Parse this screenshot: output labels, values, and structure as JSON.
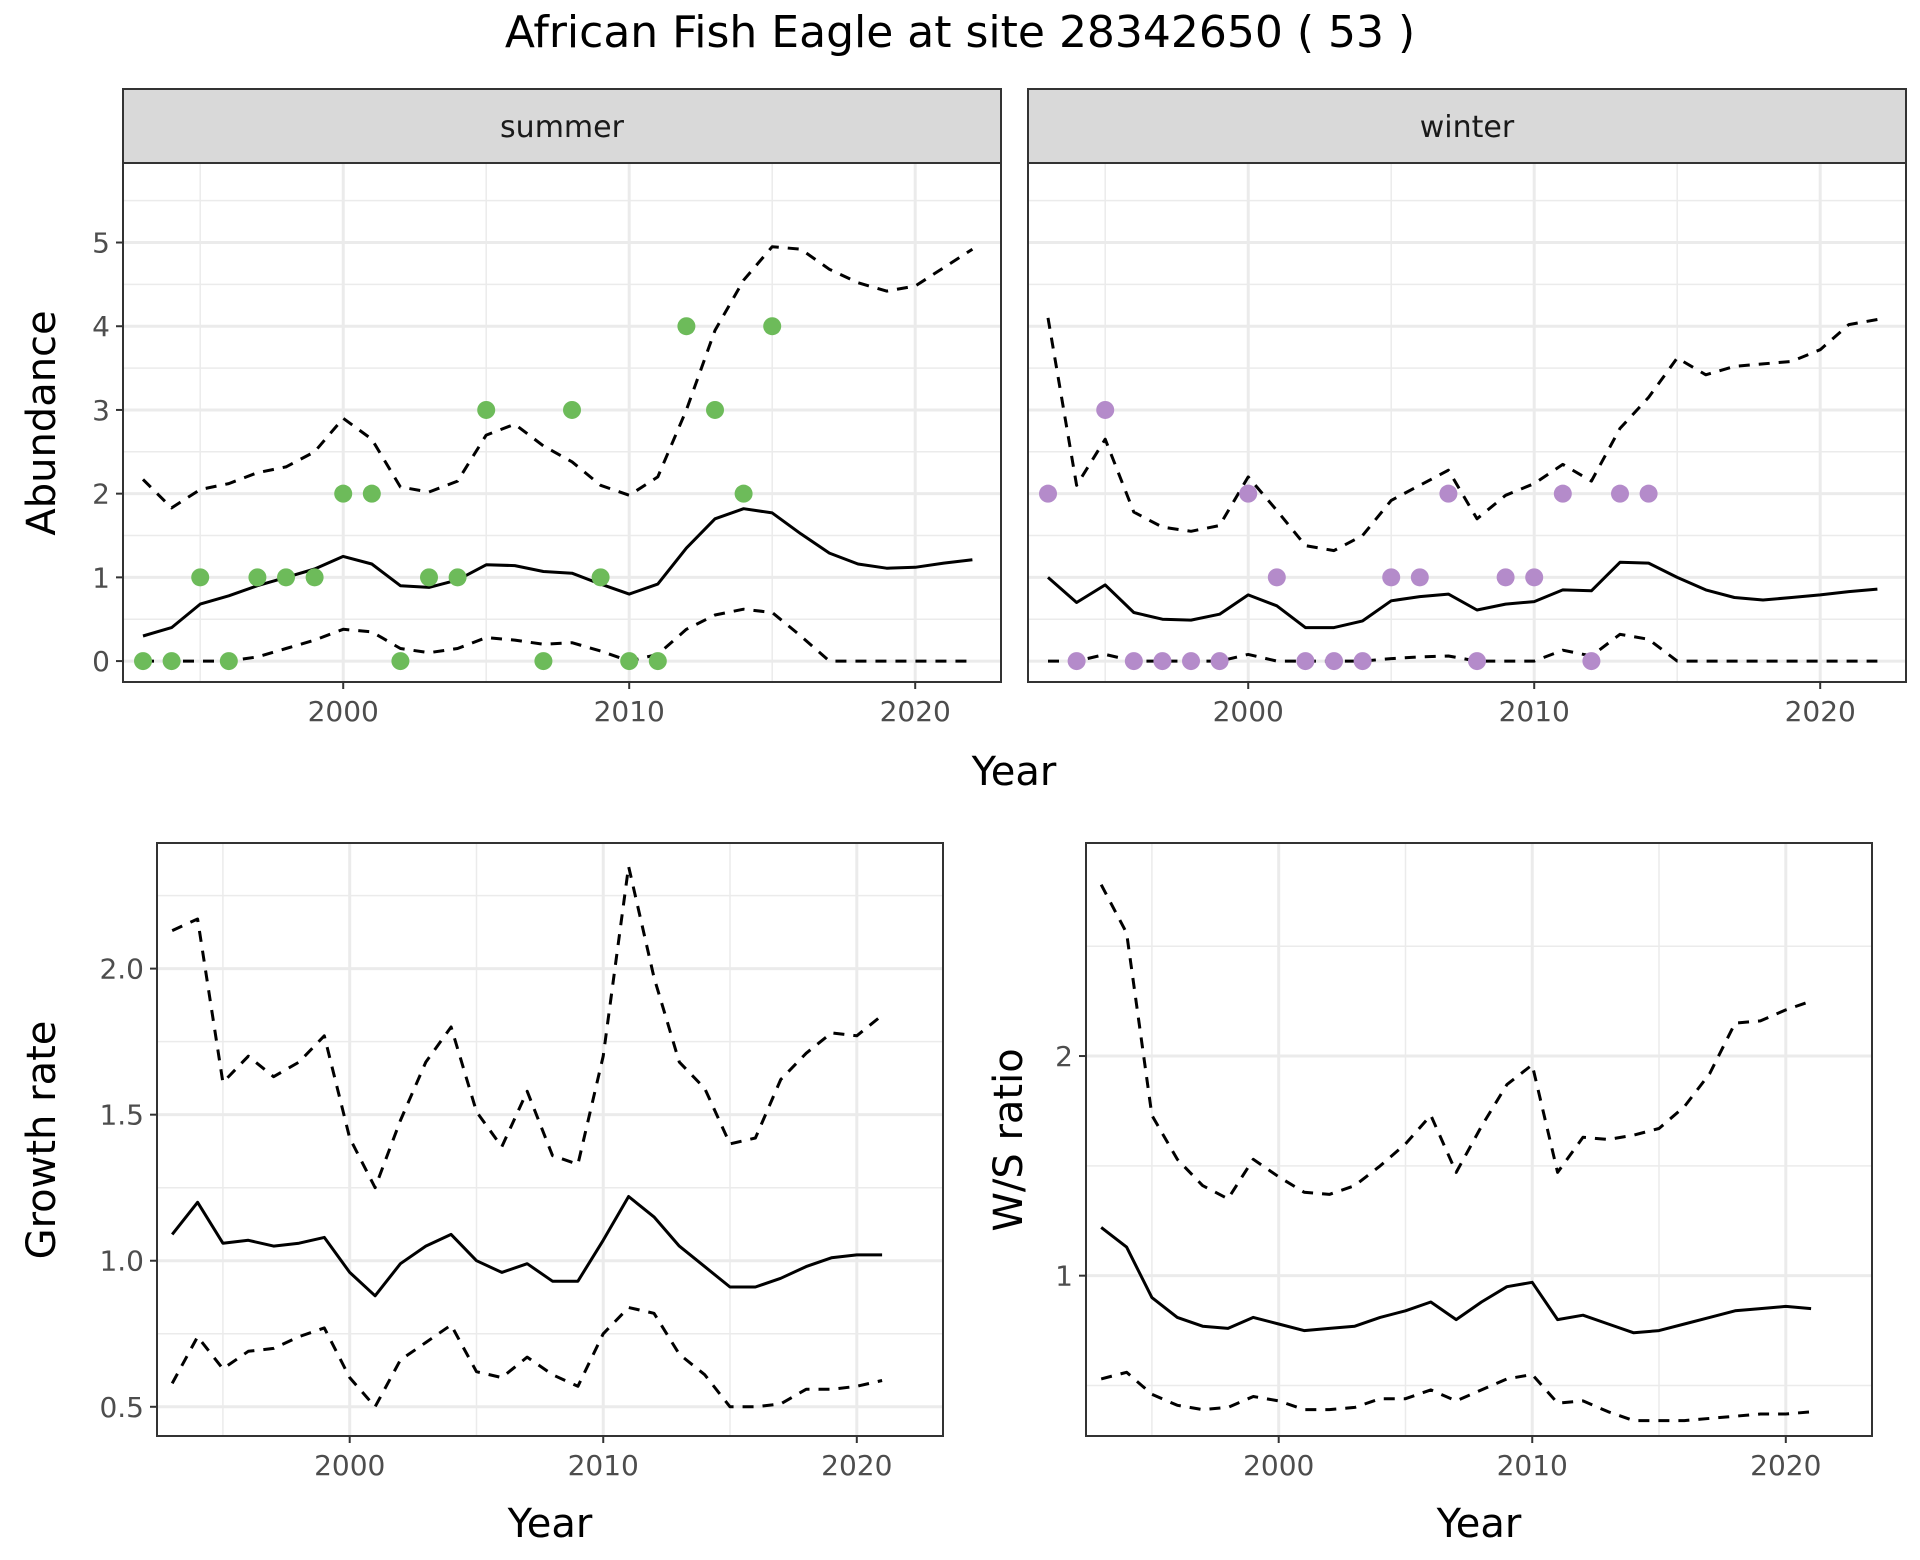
{
  "figure": {
    "title": "African Fish Eagle at site 28342650 ( 53 )"
  },
  "colors": {
    "summer_points": "#6dbb5a",
    "winter_points": "#b48bca",
    "line": "#000000",
    "strip_fill": "#d9d9d9",
    "grid": "#ebebeb",
    "panel_border": "#333333"
  },
  "chart_data": [
    {
      "type": "line",
      "panel": "abundance",
      "ylabel": "Abundance",
      "xlabel": "Year",
      "xlim": [
        1992.3,
        2023.0
      ],
      "ylim": [
        -0.25,
        5.95
      ],
      "x_ticks": [
        2000,
        2010,
        2020
      ],
      "y_ticks": [
        0,
        1,
        2,
        3,
        4,
        5
      ],
      "grid": true,
      "facets": [
        {
          "strip": "summer",
          "points": {
            "color": "summer",
            "x": [
              1993,
              1994,
              1995,
              1996,
              1997,
              1998,
              1999,
              2000,
              2001,
              2002,
              2003,
              2004,
              2005,
              2007,
              2008,
              2009,
              2010,
              2011,
              2012,
              2013,
              2014,
              2015
            ],
            "y": [
              0,
              0,
              1,
              0,
              1,
              1,
              1,
              2,
              2,
              0,
              1,
              1,
              3,
              0,
              3,
              1,
              0,
              0,
              4,
              3,
              2,
              4
            ]
          },
          "series": [
            {
              "style": "solid",
              "x": [
                1993,
                1994,
                1995,
                1996,
                1997,
                1998,
                1999,
                2000,
                2001,
                2002,
                2003,
                2004,
                2005,
                2006,
                2007,
                2008,
                2009,
                2010,
                2011,
                2012,
                2013,
                2014,
                2015,
                2016,
                2017,
                2018,
                2019,
                2020,
                2021,
                2022
              ],
              "y": [
                0.3,
                0.4,
                0.68,
                0.78,
                0.9,
                1.0,
                1.1,
                1.25,
                1.16,
                0.9,
                0.88,
                0.97,
                1.15,
                1.14,
                1.07,
                1.05,
                0.92,
                0.8,
                0.92,
                1.35,
                1.7,
                1.82,
                1.77,
                1.52,
                1.29,
                1.16,
                1.11,
                1.12,
                1.17,
                1.21
              ]
            },
            {
              "style": "dashed",
              "x": [
                1993,
                1994,
                1995,
                1996,
                1997,
                1998,
                1999,
                2000,
                2001,
                2002,
                2003,
                2004,
                2005,
                2006,
                2007,
                2008,
                2009,
                2010,
                2011,
                2012,
                2013,
                2014,
                2015,
                2016,
                2017,
                2018,
                2019,
                2020,
                2021,
                2022
              ],
              "y": [
                2.17,
                1.83,
                2.05,
                2.12,
                2.25,
                2.32,
                2.5,
                2.9,
                2.65,
                2.08,
                2.02,
                2.15,
                2.7,
                2.83,
                2.57,
                2.38,
                2.1,
                1.98,
                2.2,
                3.0,
                3.95,
                4.55,
                4.95,
                4.92,
                4.68,
                4.52,
                4.42,
                4.48,
                4.7,
                4.92
              ]
            },
            {
              "style": "dashed",
              "x": [
                1993,
                1994,
                1995,
                1996,
                1997,
                1998,
                1999,
                2000,
                2001,
                2002,
                2003,
                2004,
                2005,
                2006,
                2007,
                2008,
                2009,
                2010,
                2011,
                2012,
                2013,
                2014,
                2015,
                2016,
                2017,
                2018,
                2019,
                2020,
                2021,
                2022
              ],
              "y": [
                0,
                0,
                0,
                0,
                0.05,
                0.15,
                0.25,
                0.38,
                0.35,
                0.15,
                0.1,
                0.15,
                0.28,
                0.25,
                0.2,
                0.22,
                0.12,
                0,
                0.08,
                0.38,
                0.55,
                0.62,
                0.58,
                0.3,
                0,
                0,
                0,
                0,
                0,
                0
              ]
            }
          ]
        },
        {
          "strip": "winter",
          "points": {
            "color": "winter",
            "x": [
              1993,
              1994,
              1995,
              1996,
              1997,
              1998,
              1999,
              2000,
              2001,
              2002,
              2003,
              2004,
              2005,
              2006,
              2007,
              2008,
              2009,
              2010,
              2011,
              2012,
              2013,
              2014
            ],
            "y": [
              2,
              0,
              3,
              0,
              0,
              0,
              0,
              2,
              1,
              0,
              0,
              0,
              1,
              1,
              2,
              0,
              1,
              1,
              2,
              0,
              2,
              2
            ]
          },
          "series": [
            {
              "style": "solid",
              "x": [
                1993,
                1994,
                1995,
                1996,
                1997,
                1998,
                1999,
                2000,
                2001,
                2002,
                2003,
                2004,
                2005,
                2006,
                2007,
                2008,
                2009,
                2010,
                2011,
                2012,
                2013,
                2014,
                2015,
                2016,
                2017,
                2018,
                2019,
                2020,
                2021,
                2022
              ],
              "y": [
                1.0,
                0.7,
                0.91,
                0.58,
                0.5,
                0.49,
                0.56,
                0.79,
                0.66,
                0.4,
                0.4,
                0.48,
                0.72,
                0.77,
                0.8,
                0.61,
                0.68,
                0.71,
                0.85,
                0.84,
                1.18,
                1.17,
                1.0,
                0.85,
                0.76,
                0.73,
                0.76,
                0.79,
                0.83,
                0.86
              ]
            },
            {
              "style": "dashed",
              "x": [
                1993,
                1994,
                1995,
                1996,
                1997,
                1998,
                1999,
                2000,
                2001,
                2002,
                2003,
                2004,
                2005,
                2006,
                2007,
                2008,
                2009,
                2010,
                2011,
                2012,
                2013,
                2014,
                2015,
                2016,
                2017,
                2018,
                2019,
                2020,
                2021,
                2022
              ],
              "y": [
                4.1,
                2.1,
                2.65,
                1.78,
                1.6,
                1.55,
                1.62,
                2.2,
                1.8,
                1.38,
                1.32,
                1.5,
                1.92,
                2.1,
                2.28,
                1.7,
                1.98,
                2.12,
                2.35,
                2.15,
                2.78,
                3.15,
                3.62,
                3.42,
                3.52,
                3.55,
                3.58,
                3.72,
                4.02,
                4.08
              ]
            },
            {
              "style": "dashed",
              "x": [
                1993,
                1994,
                1995,
                1996,
                1997,
                1998,
                1999,
                2000,
                2001,
                2002,
                2003,
                2004,
                2005,
                2006,
                2007,
                2008,
                2009,
                2010,
                2011,
                2012,
                2013,
                2014,
                2015,
                2016,
                2017,
                2018,
                2019,
                2020,
                2021,
                2022
              ],
              "y": [
                0,
                0,
                0.08,
                0,
                0,
                0,
                0,
                0.08,
                0,
                0,
                0,
                0,
                0.03,
                0.05,
                0.06,
                0,
                0,
                0,
                0.13,
                0.06,
                0.32,
                0.26,
                0,
                0,
                0,
                0,
                0,
                0,
                0,
                0
              ]
            }
          ]
        }
      ]
    },
    {
      "type": "line",
      "panel": "growth",
      "ylabel": "Growth rate",
      "xlabel": "Year",
      "xlim": [
        1992.4,
        2023.4
      ],
      "ylim": [
        0.4,
        2.43
      ],
      "x_ticks": [
        2000,
        2010,
        2020
      ],
      "y_ticks": [
        0.5,
        1.0,
        1.5,
        2.0
      ],
      "y_tick_labels": [
        "0.5",
        "1.0",
        "1.5",
        "2.0"
      ],
      "grid": true,
      "series": [
        {
          "style": "solid",
          "x": [
            1993,
            1994,
            1995,
            1996,
            1997,
            1998,
            1999,
            2000,
            2001,
            2002,
            2003,
            2004,
            2005,
            2006,
            2007,
            2008,
            2009,
            2010,
            2011,
            2012,
            2013,
            2014,
            2015,
            2016,
            2017,
            2018,
            2019,
            2020,
            2021
          ],
          "y": [
            1.09,
            1.2,
            1.06,
            1.07,
            1.05,
            1.06,
            1.08,
            0.96,
            0.88,
            0.99,
            1.05,
            1.09,
            1.0,
            0.96,
            0.99,
            0.93,
            0.93,
            1.07,
            1.22,
            1.15,
            1.05,
            0.98,
            0.91,
            0.91,
            0.94,
            0.98,
            1.01,
            1.02,
            1.02
          ]
        },
        {
          "style": "dashed",
          "x": [
            1993,
            1994,
            1995,
            1996,
            1997,
            1998,
            1999,
            2000,
            2001,
            2002,
            2003,
            2004,
            2005,
            2006,
            2007,
            2008,
            2009,
            2010,
            2011,
            2012,
            2013,
            2014,
            2015,
            2016,
            2017,
            2018,
            2019,
            2020,
            2021
          ],
          "y": [
            2.13,
            2.17,
            1.61,
            1.7,
            1.63,
            1.68,
            1.77,
            1.42,
            1.25,
            1.48,
            1.68,
            1.8,
            1.51,
            1.39,
            1.58,
            1.36,
            1.33,
            1.7,
            2.35,
            1.97,
            1.68,
            1.59,
            1.4,
            1.42,
            1.62,
            1.71,
            1.78,
            1.77,
            1.84
          ]
        },
        {
          "style": "dashed",
          "x": [
            1993,
            1994,
            1995,
            1996,
            1997,
            1998,
            1999,
            2000,
            2001,
            2002,
            2003,
            2004,
            2005,
            2006,
            2007,
            2008,
            2009,
            2010,
            2011,
            2012,
            2013,
            2014,
            2015,
            2016,
            2017,
            2018,
            2019,
            2020,
            2021
          ],
          "y": [
            0.58,
            0.74,
            0.63,
            0.69,
            0.7,
            0.74,
            0.77,
            0.6,
            0.5,
            0.66,
            0.72,
            0.78,
            0.62,
            0.6,
            0.67,
            0.61,
            0.57,
            0.75,
            0.84,
            0.82,
            0.68,
            0.61,
            0.5,
            0.5,
            0.51,
            0.56,
            0.56,
            0.57,
            0.59
          ]
        }
      ]
    },
    {
      "type": "line",
      "panel": "ratio",
      "ylabel": "W/S ratio",
      "xlabel": "Year",
      "xlim": [
        1992.4,
        2023.4
      ],
      "ylim": [
        0.27,
        2.97
      ],
      "x_ticks": [
        2000,
        2010,
        2020
      ],
      "y_ticks": [
        1,
        2
      ],
      "minor_y": [
        0.5,
        1.5,
        2.5
      ],
      "grid": true,
      "series": [
        {
          "style": "solid",
          "x": [
            1993,
            1994,
            1995,
            1996,
            1997,
            1998,
            1999,
            2000,
            2001,
            2002,
            2003,
            2004,
            2005,
            2006,
            2007,
            2008,
            2009,
            2010,
            2011,
            2012,
            2013,
            2014,
            2015,
            2016,
            2017,
            2018,
            2019,
            2020,
            2021
          ],
          "y": [
            1.22,
            1.13,
            0.9,
            0.81,
            0.77,
            0.76,
            0.81,
            0.78,
            0.75,
            0.76,
            0.77,
            0.81,
            0.84,
            0.88,
            0.8,
            0.88,
            0.95,
            0.97,
            0.8,
            0.82,
            0.78,
            0.74,
            0.75,
            0.78,
            0.81,
            0.84,
            0.85,
            0.86,
            0.85
          ]
        },
        {
          "style": "dashed",
          "x": [
            1993,
            1994,
            1995,
            1996,
            1997,
            1998,
            1999,
            2000,
            2001,
            2002,
            2003,
            2004,
            2005,
            2006,
            2007,
            2008,
            2009,
            2010,
            2011,
            2012,
            2013,
            2014,
            2015,
            2016,
            2017,
            2018,
            2019,
            2020,
            2021
          ],
          "y": [
            2.78,
            2.56,
            1.73,
            1.53,
            1.41,
            1.35,
            1.53,
            1.45,
            1.38,
            1.37,
            1.41,
            1.5,
            1.6,
            1.73,
            1.47,
            1.68,
            1.87,
            1.96,
            1.47,
            1.63,
            1.62,
            1.64,
            1.67,
            1.77,
            1.92,
            2.15,
            2.16,
            2.21,
            2.25
          ]
        },
        {
          "style": "dashed",
          "x": [
            1993,
            1994,
            1995,
            1996,
            1997,
            1998,
            1999,
            2000,
            2001,
            2002,
            2003,
            2004,
            2005,
            2006,
            2007,
            2008,
            2009,
            2010,
            2011,
            2012,
            2013,
            2014,
            2015,
            2016,
            2017,
            2018,
            2019,
            2020,
            2021
          ],
          "y": [
            0.53,
            0.56,
            0.46,
            0.41,
            0.39,
            0.4,
            0.45,
            0.43,
            0.39,
            0.39,
            0.4,
            0.44,
            0.44,
            0.48,
            0.43,
            0.48,
            0.53,
            0.55,
            0.42,
            0.43,
            0.38,
            0.34,
            0.34,
            0.34,
            0.35,
            0.36,
            0.37,
            0.37,
            0.38
          ]
        }
      ]
    }
  ]
}
